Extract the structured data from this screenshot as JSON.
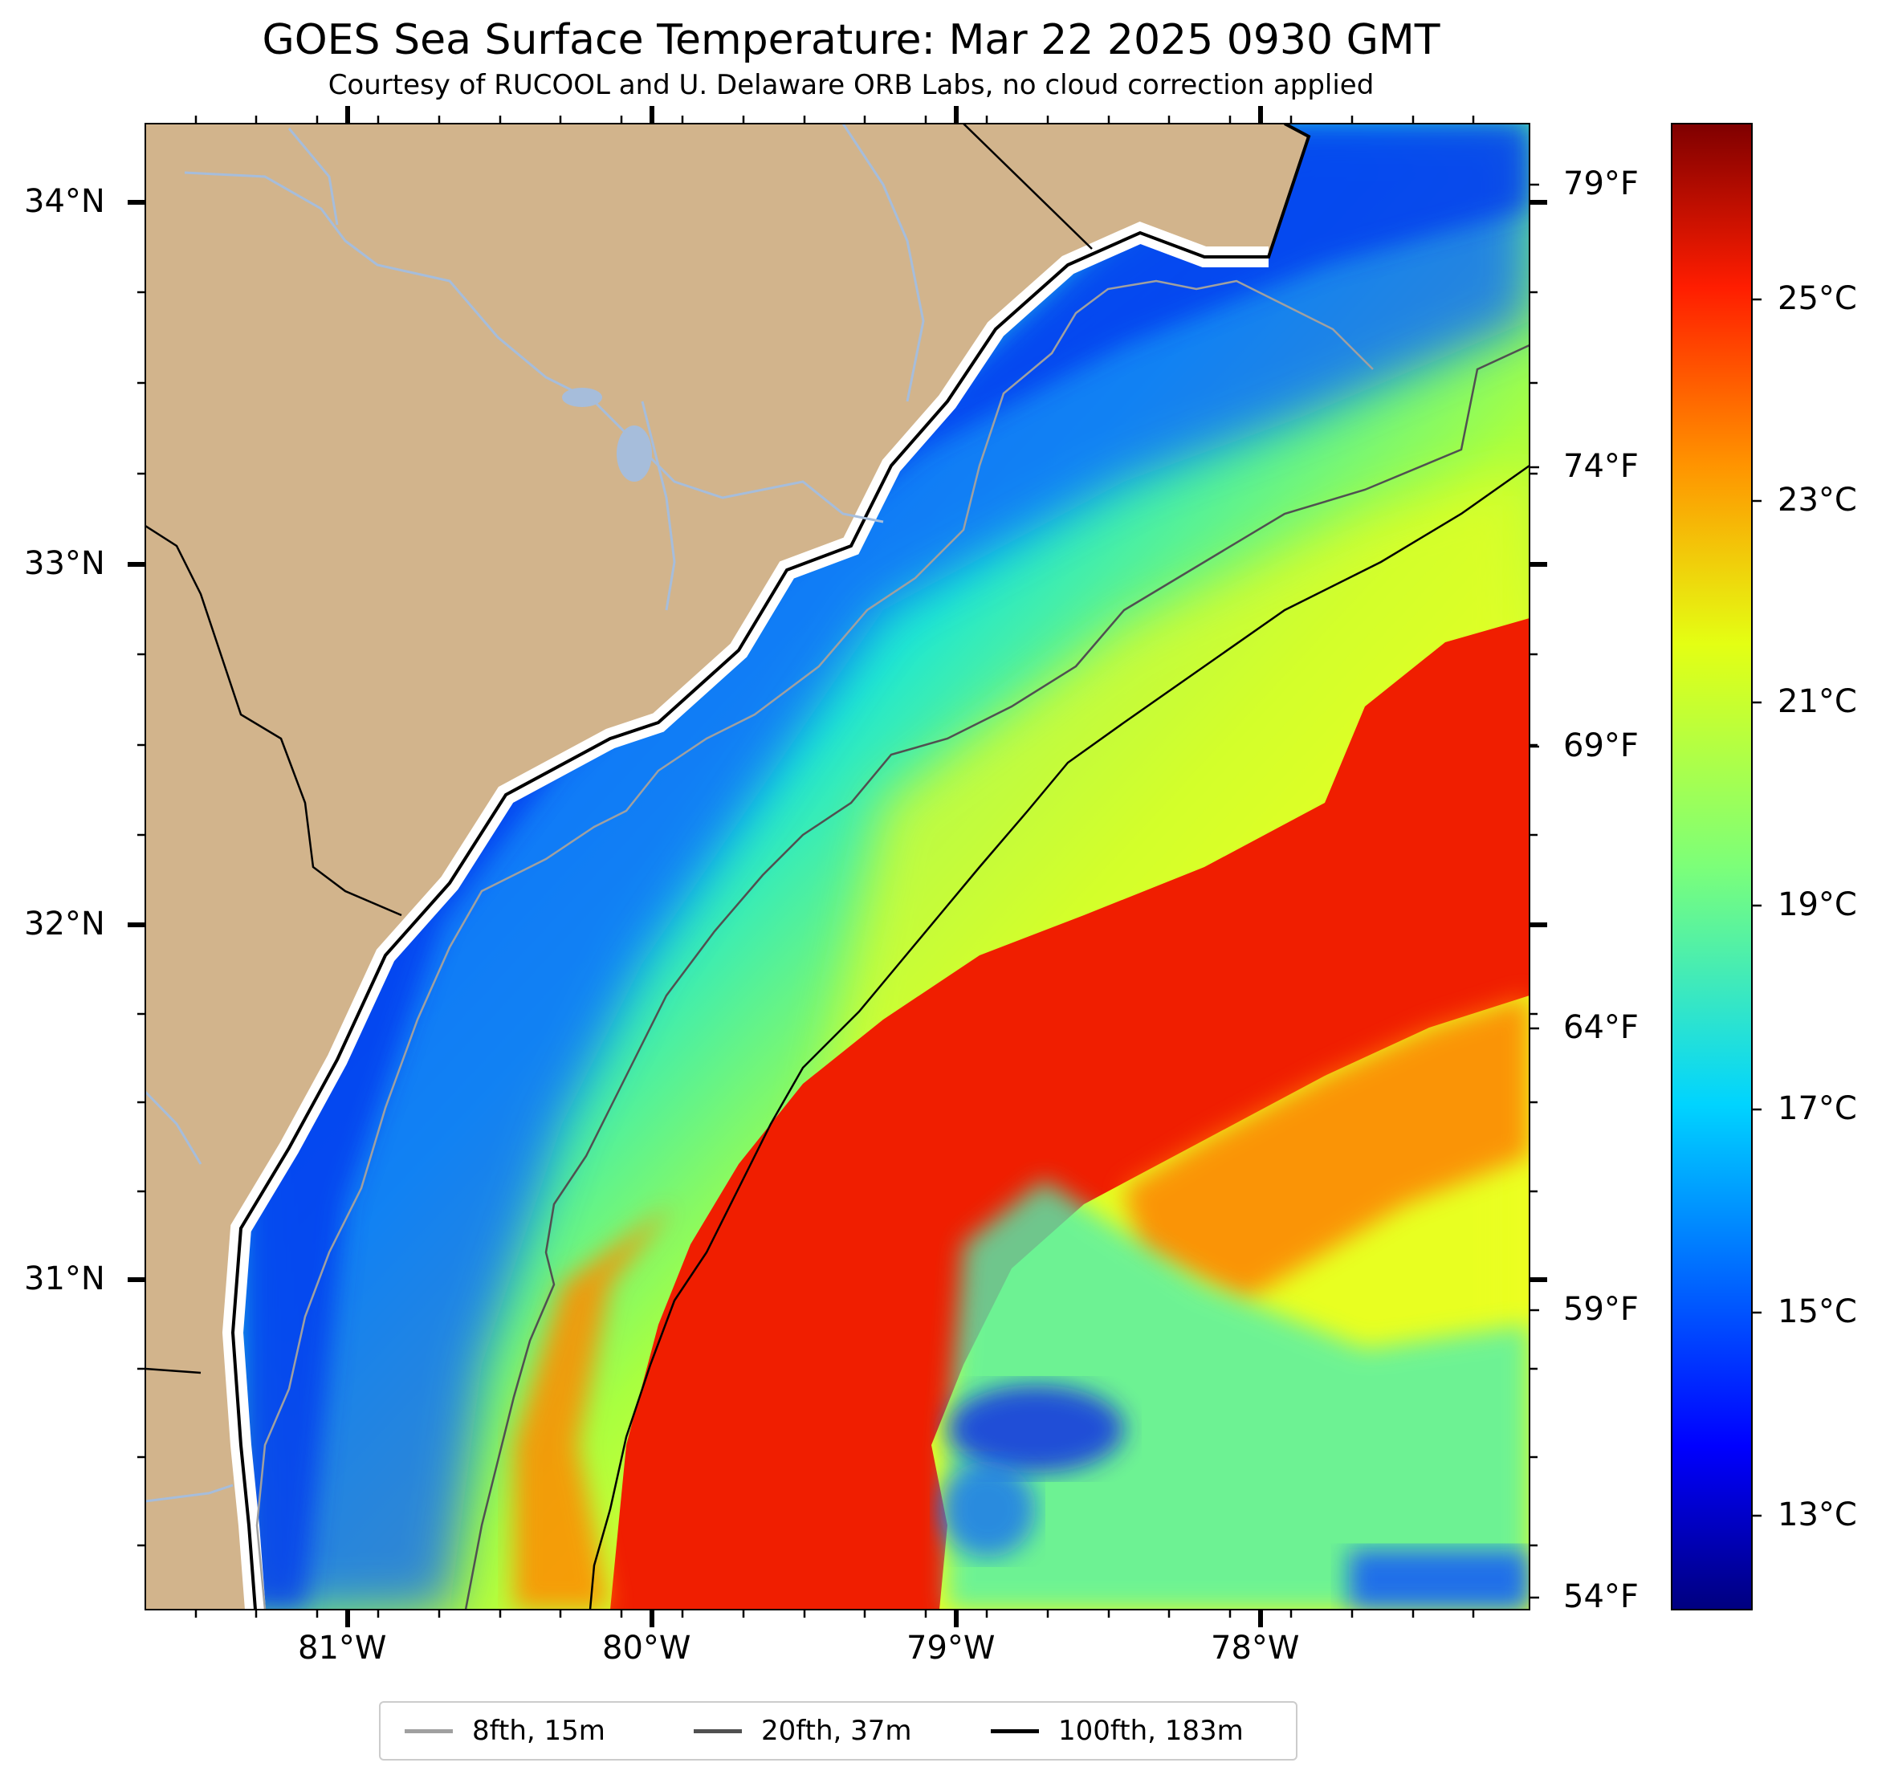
{
  "title": "GOES Sea Surface Temperature: Mar 22 2025 0930 GMT",
  "subtitle": "Courtesy of RUCOOL and U. Delaware ORB Labs, no cloud correction applied",
  "lat_labels": [
    "34°N",
    "33°N",
    "32°N",
    "31°N"
  ],
  "lon_labels": [
    "81°W",
    "80°W",
    "79°W",
    "78°W"
  ],
  "fahrenheit_labels": [
    "79°F",
    "74°F",
    "69°F",
    "64°F",
    "59°F",
    "54°F"
  ],
  "colorbar": {
    "celsius_labels": [
      "25°C",
      "23°C",
      "21°C",
      "19°C",
      "17°C",
      "15°C",
      "13°C"
    ],
    "colormap": "jet",
    "range_c": [
      12.0,
      27.0
    ]
  },
  "legend": [
    {
      "label": "8fth, 15m",
      "color": "#a0a0a0"
    },
    {
      "label": "20fth, 37m",
      "color": "#505050"
    },
    {
      "label": "100fth, 183m",
      "color": "#000000"
    }
  ],
  "colors": {
    "land": "#d2b48c",
    "river": "#a6bddb",
    "warm_core": "#f01e00",
    "cold_shelf": "#0a3cff"
  }
}
